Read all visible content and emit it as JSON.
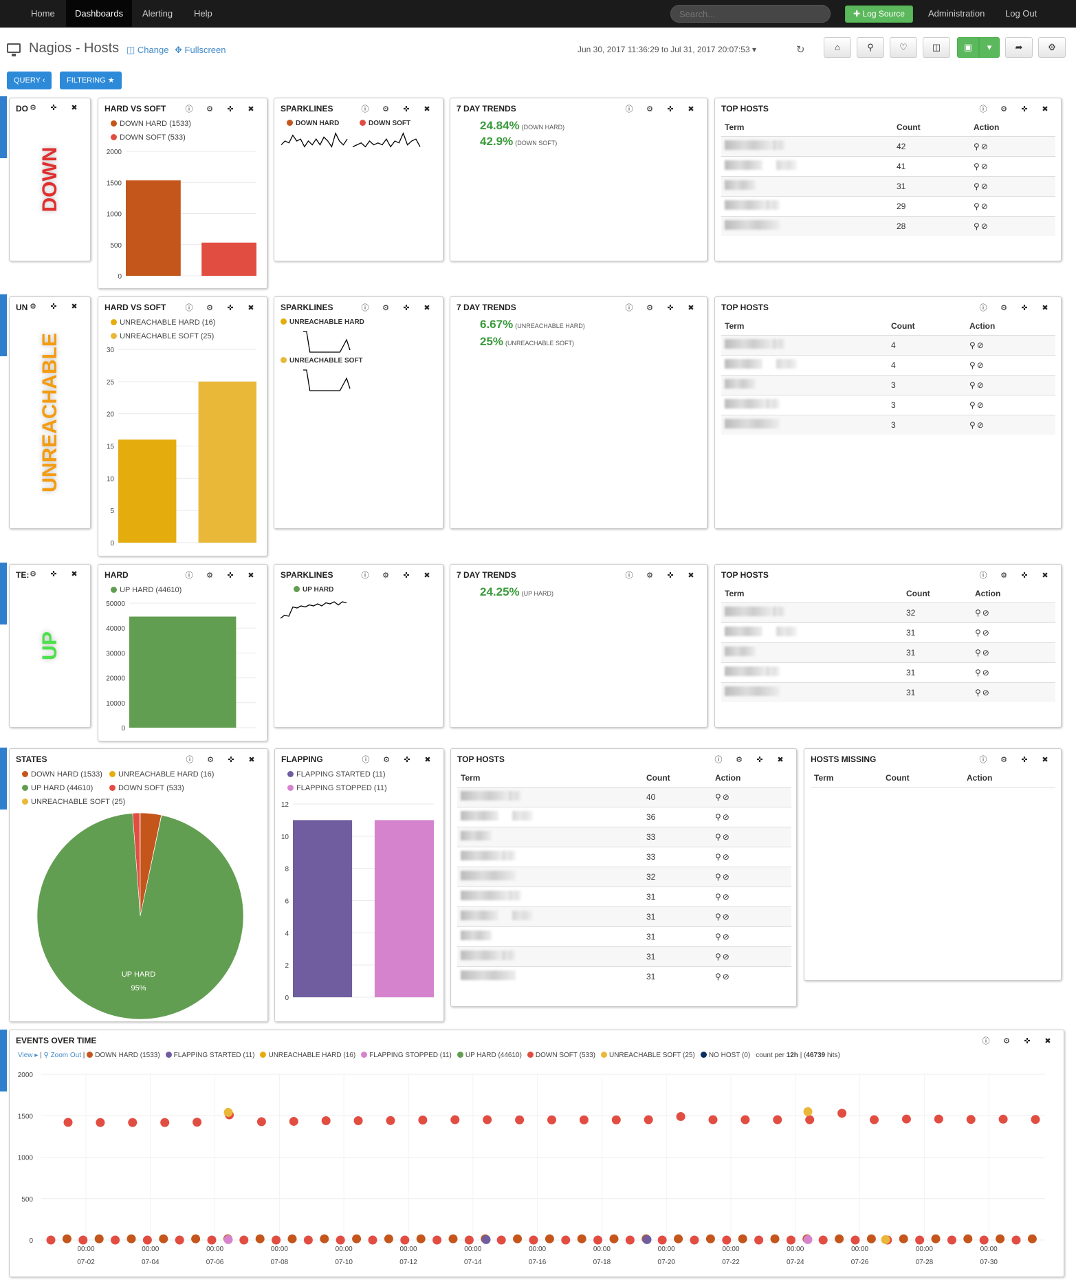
{
  "nav": {
    "home": "Home",
    "dashboards": "Dashboards",
    "alerting": "Alerting",
    "help": "Help",
    "search_placeholder": "Search...",
    "log_source": "✚ Log Source",
    "administration": "Administration",
    "logout": "Log Out"
  },
  "header": {
    "title": "Nagios - Hosts",
    "change": "Change",
    "fullscreen": "Fullscreen",
    "time_range": "Jun 30, 2017 11:36:29 to Jul 31, 2017 20:07:53 ▾"
  },
  "pills": {
    "query": "QUERY ‹",
    "filtering": "FILTERING ★"
  },
  "icon_names": [
    "info-icon",
    "gear-icon",
    "move-icon",
    "close-icon"
  ],
  "colors": {
    "down_hard": "#c4561c",
    "down_soft": "#e24d42",
    "unreach_hard": "#e5ac0e",
    "unreach_soft": "#eab839",
    "up_hard": "#629e51",
    "flap_start": "#705da0",
    "flap_stop": "#d683ce",
    "no_host": "#0a2f61"
  },
  "row_down": {
    "text_title": "DO",
    "text": "DOWN",
    "bar_title": "HARD VS SOFT",
    "leg": [
      "DOWN HARD (1533)",
      "DOWN SOFT (533)"
    ],
    "spark_title": "SPARKLINES",
    "spark": [
      "DOWN HARD",
      "DOWN SOFT"
    ],
    "trend_title": "7 DAY TRENDS",
    "trends": [
      {
        "v": "24.84%",
        "l": "(DOWN HARD)"
      },
      {
        "v": "42.9%",
        "l": "(DOWN SOFT)"
      }
    ],
    "top_title": "TOP HOSTS",
    "counts": [
      "42",
      "41",
      "31",
      "29",
      "28"
    ]
  },
  "row_unreach": {
    "text_title": "UN",
    "text": "UNREACHABLE",
    "bar_title": "HARD VS SOFT",
    "leg": [
      "UNREACHABLE HARD (16)",
      "UNREACHABLE SOFT (25)"
    ],
    "spark_title": "SPARKLINES",
    "spark": [
      "UNREACHABLE HARD",
      "UNREACHABLE SOFT"
    ],
    "trend_title": "7 DAY TRENDS",
    "trends": [
      {
        "v": "6.67%",
        "l": "(UNREACHABLE HARD)"
      },
      {
        "v": "25%",
        "l": "(UNREACHABLE SOFT)"
      }
    ],
    "top_title": "TOP HOSTS",
    "counts": [
      "4",
      "4",
      "3",
      "3",
      "3"
    ]
  },
  "row_up": {
    "text_title": "TE:",
    "text": "UP",
    "bar_title": "HARD",
    "leg": [
      "UP HARD (44610)"
    ],
    "spark_title": "SPARKLINES",
    "spark": [
      "UP HARD"
    ],
    "trend_title": "7 DAY TRENDS",
    "trends": [
      {
        "v": "24.25%",
        "l": "(UP HARD)"
      }
    ],
    "top_title": "TOP HOSTS",
    "counts": [
      "32",
      "31",
      "31",
      "31",
      "31"
    ]
  },
  "table_headers": {
    "term": "Term",
    "count": "Count",
    "action": "Action"
  },
  "states": {
    "title": "STATES",
    "leg": [
      "DOWN HARD (1533)",
      "UNREACHABLE HARD (16)",
      "UP HARD (44610)",
      "DOWN SOFT (533)",
      "UNREACHABLE SOFT (25)"
    ],
    "slice_label": "UP HARD",
    "slice_pct": "95%"
  },
  "flapping": {
    "title": "FLAPPING",
    "leg": [
      "FLAPPING STARTED (11)",
      "FLAPPING STOPPED (11)"
    ]
  },
  "top4": {
    "title": "TOP HOSTS",
    "counts": [
      "40",
      "36",
      "33",
      "33",
      "32",
      "31",
      "31",
      "31",
      "31",
      "31"
    ]
  },
  "missing": {
    "title": "HOSTS MISSING"
  },
  "events": {
    "title": "EVENTS OVER TIME",
    "view": "View ▸",
    "zoom": "Zoom Out",
    "leg": [
      "DOWN HARD (1533)",
      "FLAPPING STARTED (11)",
      "UNREACHABLE HARD (16)",
      "FLAPPING STOPPED (11)",
      "UP HARD (44610)",
      "DOWN SOFT (533)",
      "UNREACHABLE SOFT (25)",
      "NO HOST (0)"
    ],
    "count_pre": "count per",
    "count_int": "12h",
    "hits": "46739",
    "hits_suffix": "hits"
  },
  "chart_data": [
    {
      "type": "bar",
      "title": "HARD VS SOFT",
      "categories": [
        "DOWN HARD",
        "DOWN SOFT"
      ],
      "values": [
        1533,
        533
      ],
      "ylim": [
        0,
        2000
      ],
      "yticks": [
        0,
        500,
        1000,
        1500,
        2000
      ]
    },
    {
      "type": "bar",
      "title": "HARD VS SOFT",
      "categories": [
        "UNREACHABLE HARD",
        "UNREACHABLE SOFT"
      ],
      "values": [
        16,
        25
      ],
      "ylim": [
        0,
        30
      ],
      "yticks": [
        0,
        5,
        10,
        15,
        20,
        25,
        30
      ]
    },
    {
      "type": "bar",
      "title": "HARD",
      "categories": [
        "UP HARD"
      ],
      "values": [
        44610
      ],
      "ylim": [
        0,
        50000
      ],
      "yticks": [
        0,
        10000,
        20000,
        30000,
        40000,
        50000
      ]
    },
    {
      "type": "pie",
      "title": "STATES",
      "labels": [
        "DOWN HARD",
        "UNREACHABLE HARD",
        "UP HARD",
        "DOWN SOFT",
        "UNREACHABLE SOFT"
      ],
      "values": [
        1533,
        16,
        44610,
        533,
        25
      ]
    },
    {
      "type": "bar",
      "title": "FLAPPING",
      "categories": [
        "FLAPPING STARTED",
        "FLAPPING STOPPED"
      ],
      "values": [
        11,
        11
      ],
      "ylim": [
        0,
        12
      ],
      "yticks": [
        0,
        2,
        4,
        6,
        8,
        10,
        12
      ]
    },
    {
      "type": "scatter",
      "title": "EVENTS OVER TIME",
      "ylim": [
        0,
        2000
      ],
      "yticks": [
        0,
        500,
        1000,
        1500,
        2000
      ],
      "x_ticks": [
        "07-02",
        "07-04",
        "07-06",
        "07-08",
        "07-10",
        "07-12",
        "07-14",
        "07-16",
        "07-18",
        "07-20",
        "07-22",
        "07-24",
        "07-26",
        "07-28",
        "07-30"
      ],
      "x_tick_time": "00:00",
      "series": [
        {
          "name": "DOWN SOFT",
          "values": [
            1420,
            1418,
            1418,
            1418,
            1422,
            1510,
            1428,
            1432,
            1440,
            1440,
            1442,
            1448,
            1452,
            1452,
            1450,
            1450,
            1450,
            1450,
            1452,
            1490,
            1452,
            1452,
            1452,
            1452,
            1530,
            1452,
            1460,
            1460,
            1455,
            1458,
            1455
          ]
        },
        {
          "name": "UNREACHABLE SOFT",
          "values": [
            1540,
            1550
          ]
        }
      ]
    }
  ]
}
